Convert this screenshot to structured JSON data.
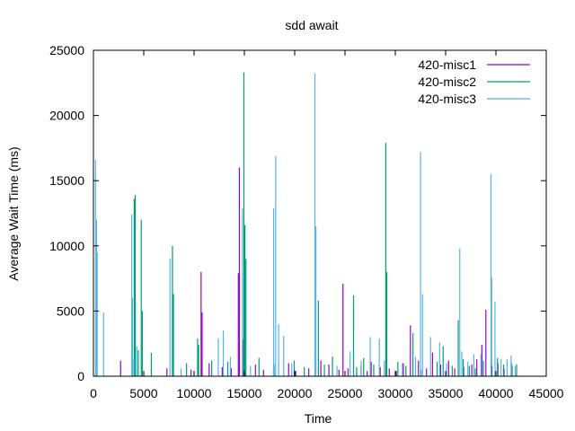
{
  "chart_data": {
    "type": "bar",
    "title": "sdd await",
    "xlabel": "Time",
    "ylabel": "Average Wait Time (ms)",
    "xlim": [
      0,
      45000
    ],
    "ylim": [
      0,
      25000
    ],
    "xticks": [
      0,
      5000,
      10000,
      15000,
      20000,
      25000,
      30000,
      35000,
      40000,
      45000
    ],
    "yticks": [
      0,
      5000,
      10000,
      15000,
      20000,
      25000
    ],
    "grid": false,
    "legend": "top-right",
    "series": [
      {
        "name": "420-misc1",
        "color": "#9400d3",
        "points": [
          [
            2700,
            1200
          ],
          [
            4100,
            1700
          ],
          [
            7300,
            600
          ],
          [
            9700,
            500
          ],
          [
            10700,
            8000
          ],
          [
            10800,
            4900
          ],
          [
            11500,
            1000
          ],
          [
            12800,
            700
          ],
          [
            13700,
            600
          ],
          [
            14400,
            7900
          ],
          [
            14500,
            16000
          ],
          [
            14900,
            2800
          ],
          [
            16100,
            900
          ],
          [
            16900,
            500
          ],
          [
            17900,
            600
          ],
          [
            19400,
            1000
          ],
          [
            20100,
            400
          ],
          [
            21400,
            600
          ],
          [
            22600,
            1200
          ],
          [
            23400,
            900
          ],
          [
            24400,
            500
          ],
          [
            24800,
            7100
          ],
          [
            25300,
            600
          ],
          [
            26600,
            800
          ],
          [
            27200,
            400
          ],
          [
            27600,
            1100
          ],
          [
            28500,
            700
          ],
          [
            29400,
            600
          ],
          [
            30100,
            400
          ],
          [
            30800,
            1000
          ],
          [
            31500,
            3900
          ],
          [
            32300,
            1200
          ],
          [
            33100,
            600
          ],
          [
            33700,
            1800
          ],
          [
            34500,
            900
          ],
          [
            35300,
            1200
          ],
          [
            35900,
            600
          ],
          [
            36800,
            700
          ],
          [
            37600,
            900
          ],
          [
            38100,
            1300
          ],
          [
            38600,
            2400
          ],
          [
            39000,
            5100
          ],
          [
            39600,
            800
          ],
          [
            40200,
            1000
          ],
          [
            40800,
            600
          ],
          [
            41600,
            800
          ]
        ]
      },
      {
        "name": "420-misc2",
        "color": "#009e73",
        "points": [
          [
            250,
            1000
          ],
          [
            300,
            9500
          ],
          [
            3800,
            6000
          ],
          [
            4000,
            13600
          ],
          [
            4100,
            13900
          ],
          [
            4400,
            2000
          ],
          [
            4700,
            12000
          ],
          [
            4800,
            5000
          ],
          [
            5700,
            1800
          ],
          [
            7800,
            10000
          ],
          [
            7900,
            6300
          ],
          [
            9200,
            1000
          ],
          [
            10300,
            2900
          ],
          [
            10400,
            2400
          ],
          [
            11700,
            1200
          ],
          [
            13300,
            1100
          ],
          [
            14900,
            23300
          ],
          [
            15000,
            11600
          ],
          [
            15100,
            9000
          ],
          [
            16400,
            1400
          ],
          [
            17900,
            900
          ],
          [
            19900,
            1200
          ],
          [
            20900,
            700
          ],
          [
            22300,
            5800
          ],
          [
            22900,
            900
          ],
          [
            23700,
            1500
          ],
          [
            25800,
            6200
          ],
          [
            26100,
            700
          ],
          [
            26800,
            1400
          ],
          [
            27800,
            900
          ],
          [
            29000,
            17900
          ],
          [
            29100,
            8000
          ],
          [
            30200,
            1100
          ],
          [
            31000,
            800
          ],
          [
            31700,
            3300
          ],
          [
            32500,
            500
          ],
          [
            34100,
            1100
          ],
          [
            34700,
            2300
          ],
          [
            35600,
            800
          ],
          [
            36200,
            4300
          ],
          [
            36700,
            1300
          ],
          [
            37300,
            800
          ],
          [
            37900,
            600
          ],
          [
            38700,
            1200
          ],
          [
            39500,
            7600
          ],
          [
            40100,
            1400
          ],
          [
            40700,
            900
          ],
          [
            41500,
            1000
          ],
          [
            42000,
            900
          ]
        ]
      },
      {
        "name": "420-misc3",
        "color": "#56b4e9",
        "points": [
          [
            100,
            16600
          ],
          [
            200,
            12000
          ],
          [
            900,
            4900
          ],
          [
            3700,
            12400
          ],
          [
            3900,
            1300
          ],
          [
            4200,
            2300
          ],
          [
            7500,
            9000
          ],
          [
            8600,
            600
          ],
          [
            12300,
            2900
          ],
          [
            12800,
            3500
          ],
          [
            13500,
            1500
          ],
          [
            14700,
            12900
          ],
          [
            15500,
            800
          ],
          [
            17800,
            12900
          ],
          [
            18000,
            16900
          ],
          [
            18300,
            4000
          ],
          [
            18800,
            3100
          ],
          [
            19600,
            1000
          ],
          [
            21900,
            23200
          ],
          [
            22000,
            11500
          ],
          [
            24100,
            800
          ],
          [
            25400,
            1900
          ],
          [
            26500,
            1200
          ],
          [
            27400,
            3000
          ],
          [
            28300,
            2900
          ],
          [
            28800,
            1200
          ],
          [
            30600,
            1000
          ],
          [
            31900,
            1500
          ],
          [
            32400,
            17200
          ],
          [
            32600,
            6300
          ],
          [
            33400,
            3000
          ],
          [
            34300,
            2600
          ],
          [
            35000,
            1000
          ],
          [
            36300,
            9800
          ],
          [
            36500,
            1900
          ],
          [
            37100,
            1100
          ],
          [
            37700,
            1700
          ],
          [
            38400,
            1700
          ],
          [
            39400,
            15500
          ],
          [
            39800,
            5700
          ],
          [
            40400,
            1300
          ],
          [
            41000,
            1300
          ],
          [
            41400,
            1600
          ],
          [
            41800,
            800
          ]
        ]
      }
    ]
  }
}
